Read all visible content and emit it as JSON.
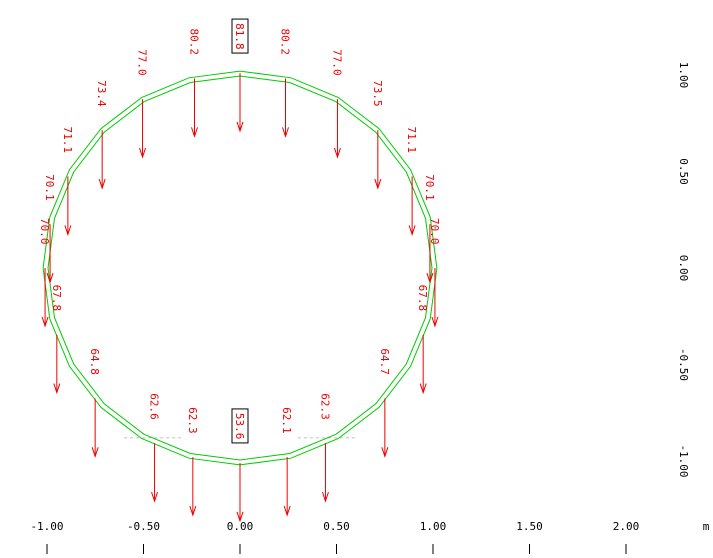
{
  "x_axis": {
    "unit": "m",
    "ticks": [
      {
        "value": -1.0,
        "label": "-1.00"
      },
      {
        "value": -0.5,
        "label": "-0.50"
      },
      {
        "value": 0.0,
        "label": "0.00"
      },
      {
        "value": 0.5,
        "label": "0.50"
      },
      {
        "value": 1.0,
        "label": "1.00"
      },
      {
        "value": 1.5,
        "label": "1.50"
      },
      {
        "value": 2.0,
        "label": "2.00"
      }
    ]
  },
  "y_axis": {
    "ticks": [
      {
        "value": 1.0,
        "label": "1.00"
      },
      {
        "value": 0.5,
        "label": "0.50"
      },
      {
        "value": 0.0,
        "label": "0.00"
      },
      {
        "value": -0.5,
        "label": "-0.50"
      },
      {
        "value": -1.0,
        "label": "-1.00"
      }
    ]
  },
  "ring": {
    "radius_m": 1.0,
    "color": "#00cc00"
  },
  "arrow_color": "#ee0000",
  "loads": [
    {
      "angle_deg": 90,
      "value": "81.8",
      "boxed": true
    },
    {
      "angle_deg": 76.5,
      "value": "80.2"
    },
    {
      "angle_deg": 103.5,
      "value": "80.2"
    },
    {
      "angle_deg": 60,
      "value": "77.0"
    },
    {
      "angle_deg": 120,
      "value": "77.0"
    },
    {
      "angle_deg": 45,
      "value": "73.5"
    },
    {
      "angle_deg": 135,
      "value": "73.4"
    },
    {
      "angle_deg": 28,
      "value": "71.1"
    },
    {
      "angle_deg": 152,
      "value": "71.1"
    },
    {
      "angle_deg": 13,
      "value": "70.1"
    },
    {
      "angle_deg": 167,
      "value": "70.1"
    },
    {
      "angle_deg": 0,
      "value": "70.0"
    },
    {
      "angle_deg": 180,
      "value": "70.0"
    },
    {
      "angle_deg": -20,
      "value": "67.8"
    },
    {
      "angle_deg": 200,
      "value": "67.8"
    },
    {
      "angle_deg": -42,
      "value": "64.7"
    },
    {
      "angle_deg": 222,
      "value": "64.8"
    },
    {
      "angle_deg": -64,
      "value": "62.3"
    },
    {
      "angle_deg": 244,
      "value": "62.6"
    },
    {
      "angle_deg": -76,
      "value": "62.1"
    },
    {
      "angle_deg": 256,
      "value": "62.3"
    },
    {
      "angle_deg": -90,
      "value": "53.6",
      "boxed": true
    }
  ]
}
